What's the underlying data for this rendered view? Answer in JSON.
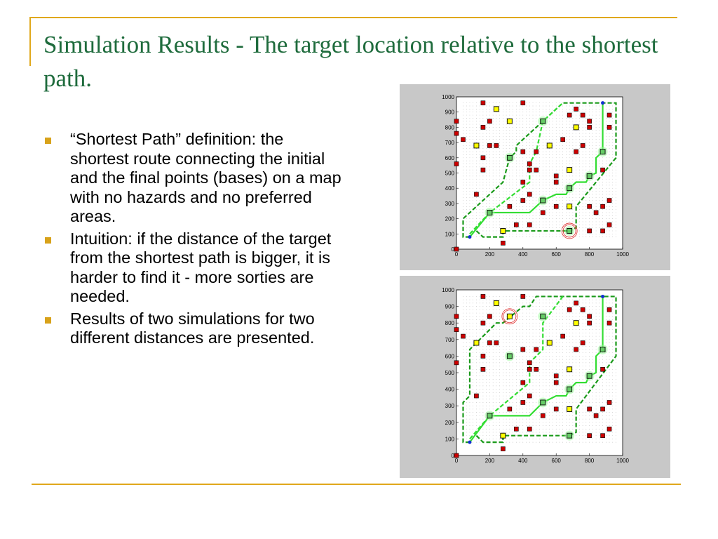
{
  "title": "Simulation Results - The target location relative to the shortest path.",
  "bullets": [
    "“Shortest Path” definition: the shortest route connecting the initial and the final points (bases) on a map with no hazards and no preferred areas.",
    "Intuition: if the distance of the target from the shortest path is bigger, it is harder to find it - more sorties are needed.",
    "Results of two simulations for two different distances are presented."
  ],
  "colors": {
    "title": "#1e6b3c",
    "accent": "#e0a81c",
    "hazard": "#cc0000",
    "preferred": "#ffff00",
    "path_light": "#33dd33",
    "path_dark": "#1a9a1a",
    "base": "#1030d0",
    "target_ring": "#e03030"
  },
  "chart_data": [
    {
      "type": "scatter",
      "xlim": [
        0,
        1000
      ],
      "ylim": [
        0,
        1000
      ],
      "xticks": [
        "0",
        "200",
        "400",
        "600",
        "800",
        "1000"
      ],
      "yticks": [
        "0",
        "100",
        "200",
        "300",
        "400",
        "500",
        "600",
        "700",
        "800",
        "900",
        "1000"
      ],
      "target": [
        680,
        120
      ],
      "paths": [
        {
          "style": "solid-light",
          "points": [
            [
              80,
              80
            ],
            [
              200,
              240
            ],
            [
              440,
              240
            ],
            [
              520,
              320
            ],
            [
              600,
              360
            ],
            [
              660,
              360
            ],
            [
              680,
              400
            ],
            [
              720,
              440
            ],
            [
              780,
              440
            ],
            [
              800,
              480
            ],
            [
              840,
              500
            ],
            [
              840,
              600
            ],
            [
              880,
              640
            ],
            [
              880,
              960
            ]
          ]
        },
        {
          "style": "dashed-dark",
          "points": [
            [
              80,
              80
            ],
            [
              40,
              80
            ],
            [
              40,
              200
            ],
            [
              280,
              440
            ],
            [
              320,
              600
            ],
            [
              360,
              640
            ],
            [
              360,
              680
            ],
            [
              440,
              760
            ],
            [
              640,
              960
            ],
            [
              960,
              960
            ],
            [
              960,
              600
            ],
            [
              900,
              520
            ],
            [
              720,
              280
            ],
            [
              720,
              140
            ],
            [
              680,
              120
            ]
          ]
        },
        {
          "style": "dashed-dark",
          "points": [
            [
              120,
              120
            ],
            [
              160,
              80
            ],
            [
              280,
              80
            ],
            [
              280,
              120
            ],
            [
              680,
              120
            ]
          ]
        },
        {
          "style": "dashed-light",
          "points": [
            [
              80,
              100
            ],
            [
              200,
              240
            ],
            [
              440,
              440
            ],
            [
              440,
              560
            ],
            [
              480,
              640
            ],
            [
              520,
              840
            ],
            [
              640,
              960
            ]
          ]
        }
      ]
    },
    {
      "type": "scatter",
      "xlim": [
        0,
        1000
      ],
      "ylim": [
        0,
        1000
      ],
      "xticks": [
        "0",
        "200",
        "400",
        "600",
        "800",
        "1000"
      ],
      "yticks": [
        "0",
        "100",
        "200",
        "300",
        "400",
        "500",
        "600",
        "700",
        "800",
        "900",
        "1000"
      ],
      "target": [
        320,
        840
      ],
      "paths": [
        {
          "style": "solid-light",
          "points": [
            [
              80,
              80
            ],
            [
              200,
              240
            ],
            [
              440,
              240
            ],
            [
              520,
              320
            ],
            [
              600,
              360
            ],
            [
              660,
              360
            ],
            [
              680,
              400
            ],
            [
              720,
              440
            ],
            [
              780,
              440
            ],
            [
              800,
              480
            ],
            [
              840,
              500
            ],
            [
              840,
              600
            ],
            [
              880,
              640
            ],
            [
              880,
              960
            ]
          ]
        },
        {
          "style": "dashed-dark",
          "points": [
            [
              80,
              80
            ],
            [
              40,
              80
            ],
            [
              40,
              320
            ],
            [
              80,
              360
            ],
            [
              80,
              640
            ],
            [
              160,
              720
            ],
            [
              240,
              800
            ],
            [
              280,
              800
            ],
            [
              400,
              900
            ],
            [
              440,
              900
            ],
            [
              480,
              960
            ],
            [
              960,
              960
            ],
            [
              960,
              600
            ],
            [
              900,
              520
            ],
            [
              720,
              280
            ],
            [
              720,
              140
            ],
            [
              680,
              120
            ]
          ]
        },
        {
          "style": "dashed-dark",
          "points": [
            [
              120,
              120
            ],
            [
              160,
              80
            ],
            [
              280,
              80
            ],
            [
              280,
              120
            ],
            [
              680,
              120
            ]
          ]
        },
        {
          "style": "dashed-light",
          "points": [
            [
              80,
              100
            ],
            [
              200,
              240
            ],
            [
              440,
              440
            ],
            [
              440,
              560
            ],
            [
              520,
              640
            ],
            [
              520,
              800
            ],
            [
              640,
              960
            ]
          ]
        }
      ]
    }
  ],
  "markers": {
    "hazards": [
      [
        160,
        960
      ],
      [
        400,
        960
      ],
      [
        0,
        840
      ],
      [
        200,
        840
      ],
      [
        160,
        800
      ],
      [
        0,
        760
      ],
      [
        40,
        720
      ],
      [
        200,
        680
      ],
      [
        240,
        680
      ],
      [
        160,
        600
      ],
      [
        0,
        560
      ],
      [
        160,
        520
      ],
      [
        400,
        640
      ],
      [
        480,
        640
      ],
      [
        440,
        560
      ],
      [
        440,
        520
      ],
      [
        480,
        520
      ],
      [
        400,
        440
      ],
      [
        440,
        360
      ],
      [
        400,
        320
      ],
      [
        120,
        360
      ],
      [
        320,
        280
      ],
      [
        520,
        240
      ],
      [
        360,
        160
      ],
      [
        440,
        160
      ],
      [
        280,
        40
      ],
      [
        0,
        0
      ],
      [
        720,
        920
      ],
      [
        680,
        880
      ],
      [
        760,
        880
      ],
      [
        800,
        840
      ],
      [
        920,
        880
      ],
      [
        800,
        800
      ],
      [
        920,
        800
      ],
      [
        640,
        720
      ],
      [
        760,
        680
      ],
      [
        720,
        640
      ],
      [
        600,
        480
      ],
      [
        600,
        440
      ],
      [
        880,
        520
      ],
      [
        600,
        280
      ],
      [
        800,
        280
      ],
      [
        880,
        280
      ],
      [
        920,
        320
      ],
      [
        840,
        240
      ],
      [
        800,
        120
      ],
      [
        880,
        120
      ],
      [
        920,
        160
      ]
    ],
    "preferred": [
      [
        240,
        920
      ],
      [
        320,
        840
      ],
      [
        120,
        680
      ],
      [
        560,
        680
      ],
      [
        720,
        800
      ],
      [
        680,
        520
      ],
      [
        680,
        280
      ],
      [
        280,
        120
      ]
    ],
    "waypoints": [
      [
        520,
        840
      ],
      [
        320,
        600
      ],
      [
        880,
        640
      ],
      [
        800,
        480
      ],
      [
        680,
        400
      ],
      [
        520,
        320
      ],
      [
        200,
        240
      ],
      [
        680,
        120
      ]
    ],
    "bases": [
      [
        80,
        80
      ],
      [
        880,
        960
      ]
    ]
  }
}
